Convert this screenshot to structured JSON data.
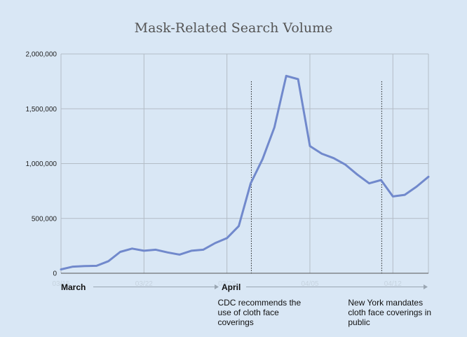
{
  "chart_data": {
    "type": "line",
    "title": "Mask-Related Search Volume",
    "xlabel": "",
    "ylabel": "",
    "y_ticks": [
      "0",
      "500,000",
      "1,000,000",
      "1,500,000",
      "2,000,000"
    ],
    "ylim": [
      0,
      2000000
    ],
    "x_ticks": [
      "03/15",
      "03/22",
      "03/29",
      "04/05",
      "04/12"
    ],
    "month_labels": [
      "March",
      "April"
    ],
    "grid": true,
    "series": [
      {
        "color": "#7189cc",
        "x": [
          "03/15",
          "03/16",
          "03/17",
          "03/18",
          "03/19",
          "03/20",
          "03/21",
          "03/22",
          "03/23",
          "03/24",
          "03/25",
          "03/26",
          "03/27",
          "03/28",
          "03/29",
          "03/30",
          "03/31",
          "04/01",
          "04/02",
          "04/03",
          "04/04",
          "04/05",
          "04/06",
          "04/07",
          "04/08",
          "04/09",
          "04/10",
          "04/11",
          "04/12",
          "04/13",
          "04/14",
          "04/15"
        ],
        "values": [
          35000,
          60000,
          65000,
          68000,
          110000,
          195000,
          225000,
          205000,
          215000,
          190000,
          170000,
          205000,
          215000,
          275000,
          320000,
          430000,
          820000,
          1040000,
          1330000,
          1800000,
          1770000,
          1160000,
          1090000,
          1050000,
          990000,
          900000,
          820000,
          850000,
          700000,
          715000,
          790000,
          880000
        ]
      }
    ],
    "annotations": [
      {
        "x": "03/31",
        "lines": [
          "CDC recommends the",
          "use of cloth face",
          "coverings"
        ]
      },
      {
        "x": "04/11",
        "lines": [
          "New York mandates",
          "cloth face coverings in",
          "public"
        ]
      }
    ]
  }
}
